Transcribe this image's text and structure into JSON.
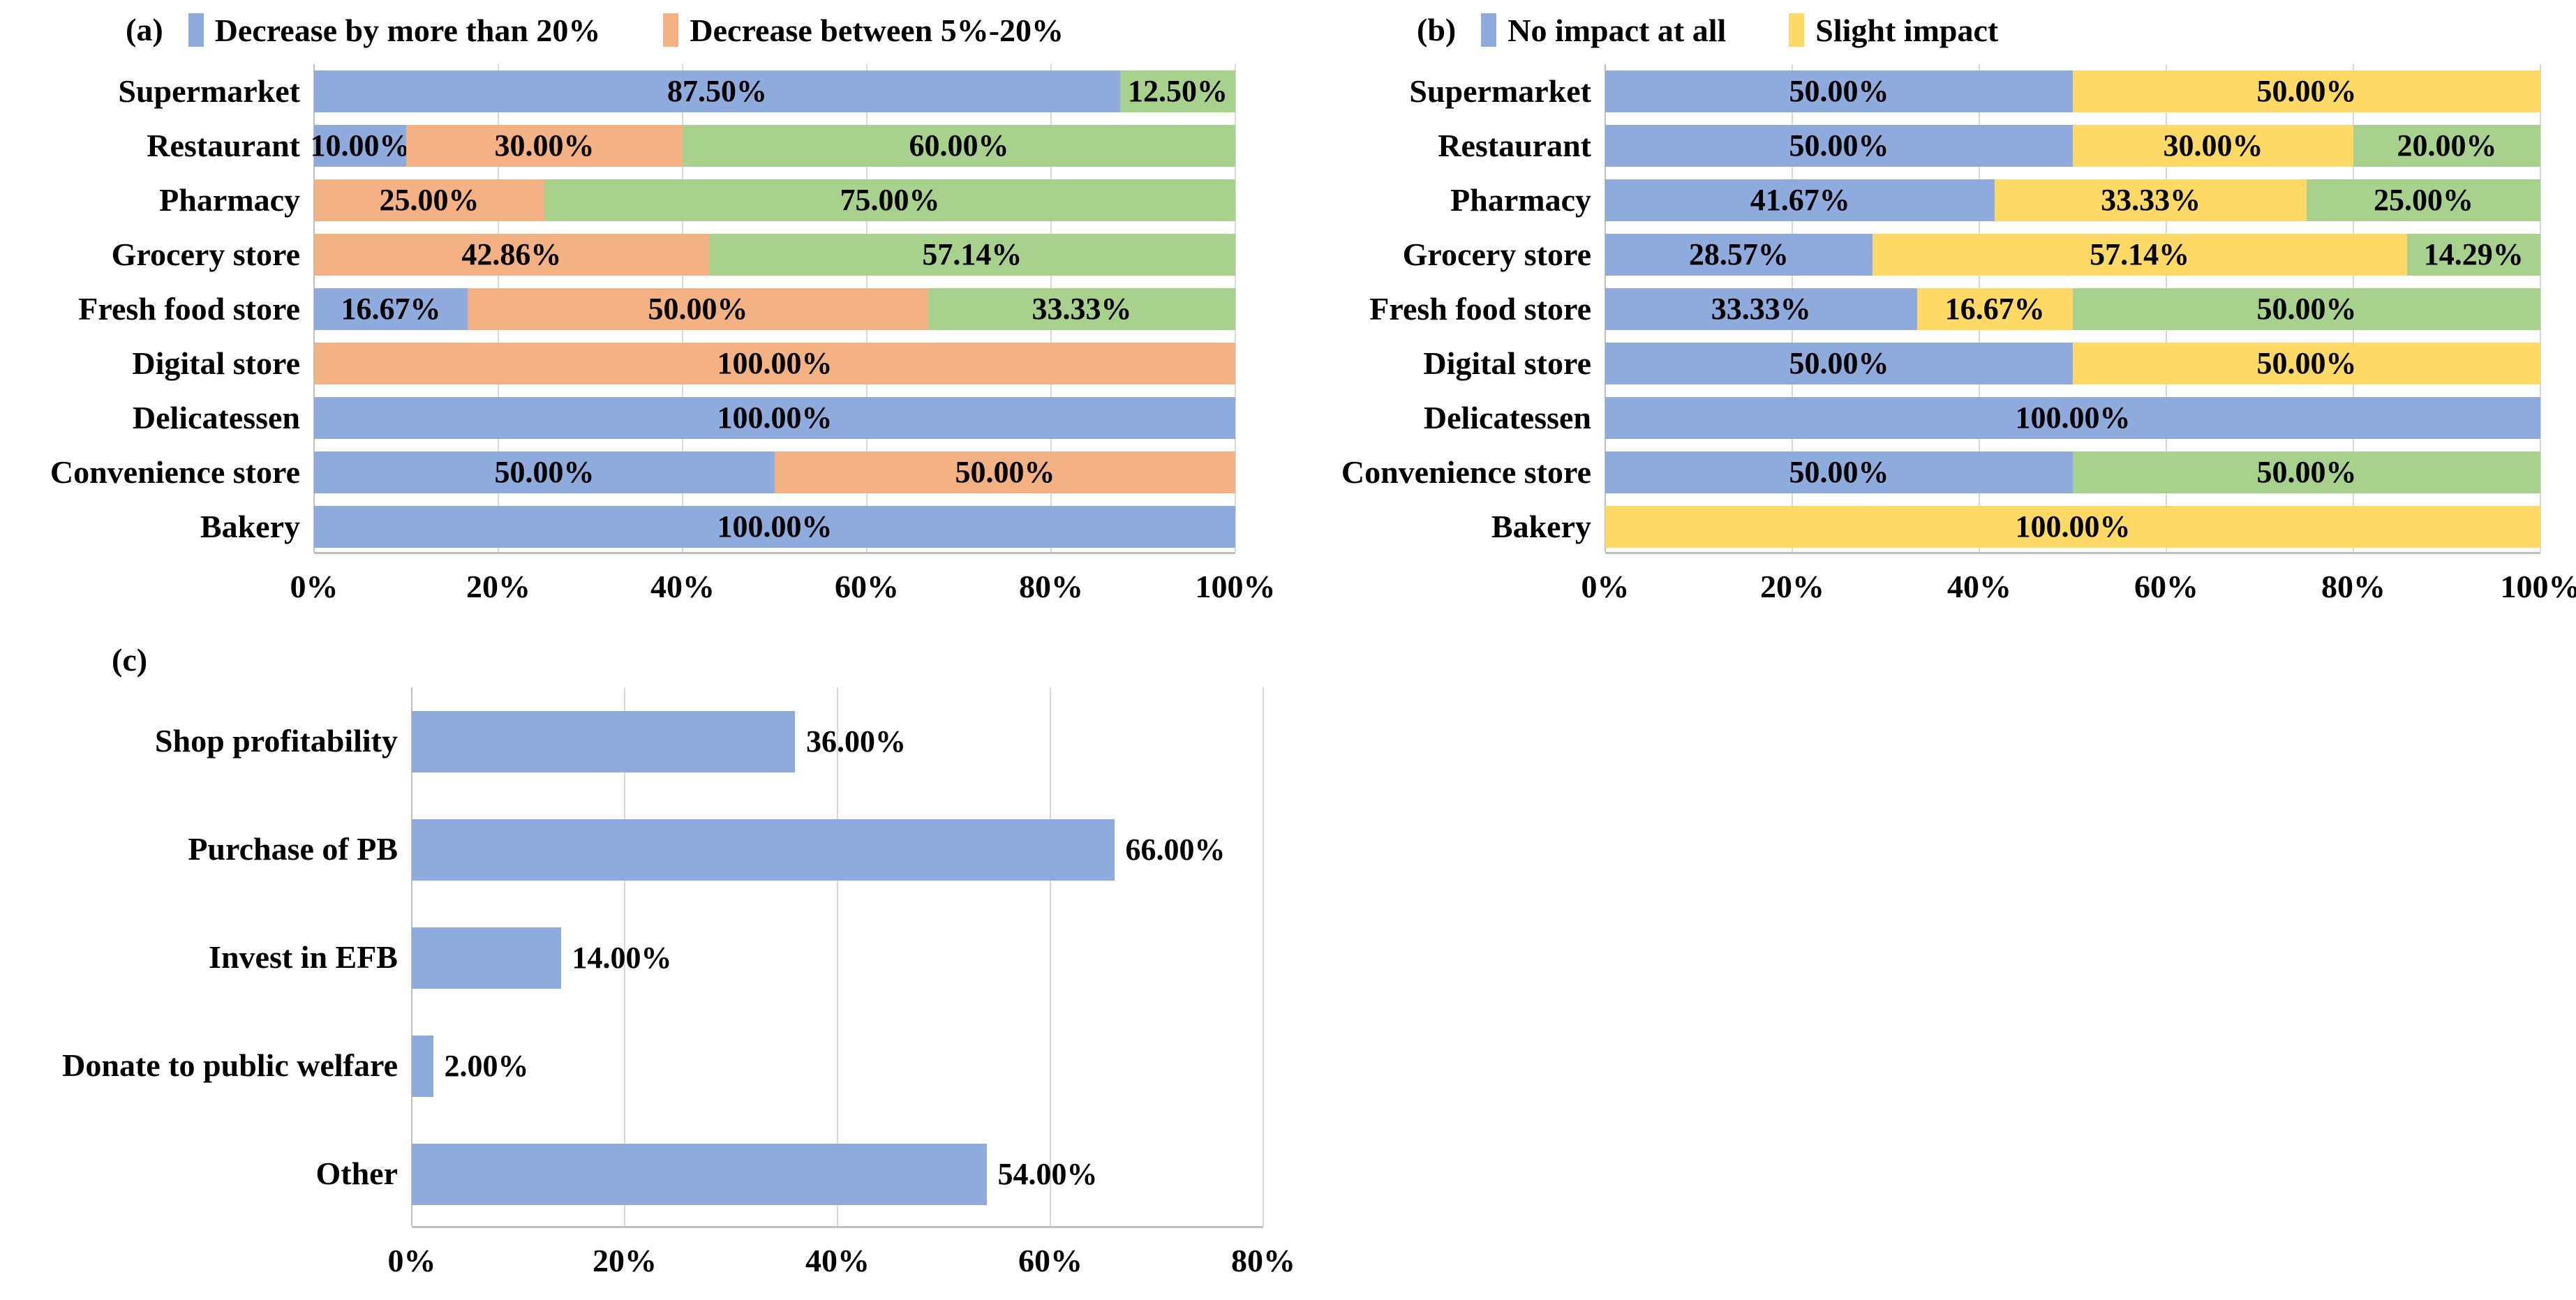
{
  "figure": {
    "background": "#FFFFFF",
    "colors": {
      "blue": "#8FAADC",
      "orange": "#F4B183",
      "green": "#A9D18E",
      "yellow": "#FFD966",
      "gridline": "#D9D9D9",
      "axis_line": "#BFBFBF",
      "text": "#000000"
    }
  },
  "chart_data": [
    {
      "id": "chart-a",
      "panel_label": "(a)",
      "type": "bar",
      "orientation": "horizontal",
      "stacked": true,
      "grid": true,
      "legend_position": "top",
      "value_label_position": "inside-center",
      "xlim": [
        0,
        100
      ],
      "x_ticks": [
        {
          "value": 0,
          "label": "0%"
        },
        {
          "value": 20,
          "label": "20%"
        },
        {
          "value": 40,
          "label": "40%"
        },
        {
          "value": 60,
          "label": "60%"
        },
        {
          "value": 80,
          "label": "80%"
        },
        {
          "value": 100,
          "label": "100%"
        }
      ],
      "categories": [
        "Supermarket",
        "Restaurant",
        "Pharmacy",
        "Grocery store",
        "Fresh food store",
        "Digital store",
        "Delicatessen",
        "Convenience store",
        "Bakery"
      ],
      "series": [
        {
          "name": "Decrease by more than 20%",
          "color": "#8FAADC",
          "show_in_legend": true,
          "values": [
            87.5,
            10,
            0,
            0,
            16.67,
            0,
            100,
            50,
            100
          ],
          "value_labels": [
            "87.50%",
            "10.00%",
            "",
            "",
            "16.67%",
            "",
            "100.00%",
            "50.00%",
            "100.00%"
          ]
        },
        {
          "name": "Decrease between 5%-20%",
          "color": "#F4B183",
          "show_in_legend": true,
          "values": [
            0,
            30,
            25,
            42.86,
            50,
            100,
            0,
            50,
            0
          ],
          "value_labels": [
            "",
            "30.00%",
            "25.00%",
            "42.86%",
            "50.00%",
            "100.00%",
            "",
            "50.00%",
            ""
          ]
        },
        {
          "name": "",
          "color": "#A9D18E",
          "show_in_legend": false,
          "values": [
            12.5,
            60,
            75,
            57.14,
            33.33,
            0,
            0,
            0,
            0
          ],
          "value_labels": [
            "12.50%",
            "60.00%",
            "75.00%",
            "57.14%",
            "33.33%",
            "",
            "",
            "",
            ""
          ]
        }
      ]
    },
    {
      "id": "chart-b",
      "panel_label": "(b)",
      "type": "bar",
      "orientation": "horizontal",
      "stacked": true,
      "grid": true,
      "legend_position": "top",
      "value_label_position": "inside-center",
      "xlim": [
        0,
        100
      ],
      "x_ticks": [
        {
          "value": 0,
          "label": "0%"
        },
        {
          "value": 20,
          "label": "20%"
        },
        {
          "value": 40,
          "label": "40%"
        },
        {
          "value": 60,
          "label": "60%"
        },
        {
          "value": 80,
          "label": "80%"
        },
        {
          "value": 100,
          "label": "100%"
        }
      ],
      "categories": [
        "Supermarket",
        "Restaurant",
        "Pharmacy",
        "Grocery store",
        "Fresh food store",
        "Digital store",
        "Delicatessen",
        "Convenience store",
        "Bakery"
      ],
      "series": [
        {
          "name": "No impact at all",
          "color": "#8FAADC",
          "show_in_legend": true,
          "values": [
            50,
            50,
            41.67,
            28.57,
            33.33,
            50,
            100,
            50,
            0
          ],
          "value_labels": [
            "50.00%",
            "50.00%",
            "41.67%",
            "28.57%",
            "33.33%",
            "50.00%",
            "100.00%",
            "50.00%",
            ""
          ]
        },
        {
          "name": "Slight impact",
          "color": "#FFD966",
          "show_in_legend": true,
          "values": [
            50,
            30,
            33.33,
            57.14,
            16.67,
            50,
            0,
            0,
            100
          ],
          "value_labels": [
            "50.00%",
            "30.00%",
            "33.33%",
            "57.14%",
            "16.67%",
            "50.00%",
            "",
            "",
            "100.00%"
          ]
        },
        {
          "name": "",
          "color": "#A9D18E",
          "show_in_legend": false,
          "values": [
            0,
            20,
            25,
            14.29,
            50,
            0,
            0,
            50,
            0
          ],
          "value_labels": [
            "",
            "20.00%",
            "25.00%",
            "14.29%",
            "50.00%",
            "",
            "",
            "50.00%",
            ""
          ]
        }
      ]
    },
    {
      "id": "chart-c",
      "panel_label": "(c)",
      "type": "bar",
      "orientation": "horizontal",
      "stacked": false,
      "grid": true,
      "legend_position": "none",
      "value_label_position": "outside",
      "xlim": [
        0,
        80
      ],
      "x_ticks": [
        {
          "value": 0,
          "label": "0%"
        },
        {
          "value": 20,
          "label": "20%"
        },
        {
          "value": 40,
          "label": "40%"
        },
        {
          "value": 60,
          "label": "60%"
        },
        {
          "value": 80,
          "label": "80%"
        }
      ],
      "categories": [
        "Shop profitability",
        "Purchase of PB",
        "Invest in EFB",
        "Donate to public welfare",
        "Other"
      ],
      "series": [
        {
          "name": "",
          "color": "#8FAADC",
          "show_in_legend": false,
          "values": [
            36,
            66,
            14,
            2,
            54
          ],
          "value_labels": [
            "36.00%",
            "66.00%",
            "14.00%",
            "2.00%",
            "54.00%"
          ]
        }
      ]
    }
  ]
}
